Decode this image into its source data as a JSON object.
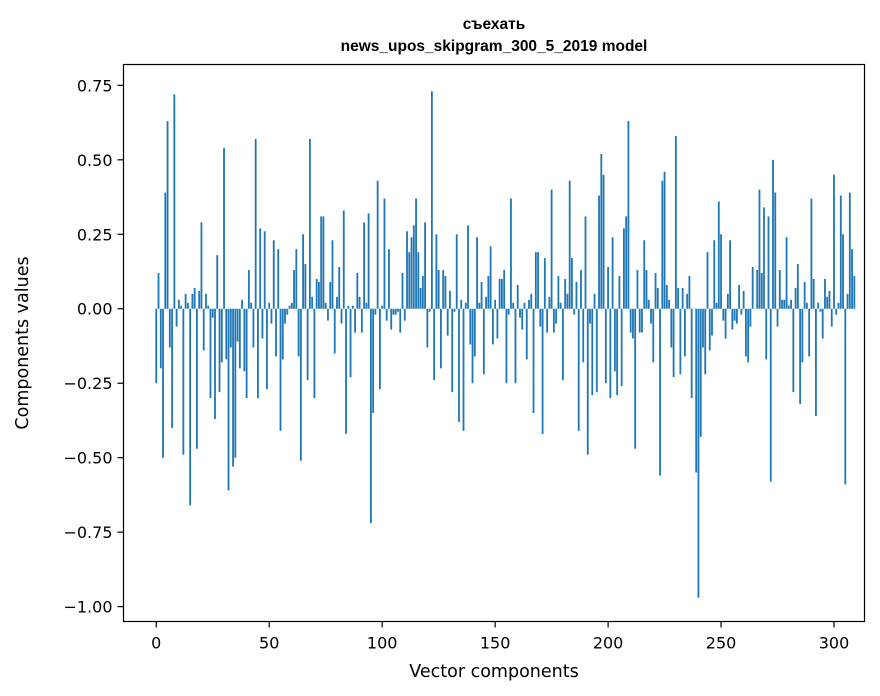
{
  "chart_data": {
    "type": "bar",
    "title": "съехать",
    "subtitle": "news_upos_skipgram_300_5_2019 model",
    "xlabel": "Vector components",
    "ylabel": "Components values",
    "xlim": [
      -14.5,
      313.5
    ],
    "ylim": [
      -1.05,
      0.82
    ],
    "xticks": [
      0,
      50,
      100,
      150,
      200,
      250,
      300
    ],
    "xtick_labels": [
      "0",
      "50",
      "100",
      "150",
      "200",
      "250",
      "300"
    ],
    "yticks": [
      0.75,
      0.5,
      0.25,
      0.0,
      -0.25,
      -0.5,
      -0.75,
      -1.0
    ],
    "ytick_labels": [
      "0.75",
      "0.50",
      "0.25",
      "0.00",
      "−0.25",
      "−0.50",
      "−0.75",
      "−1.00"
    ],
    "series_color": "#1f77b4",
    "values": [
      -0.25,
      0.12,
      -0.2,
      -0.5,
      0.39,
      0.63,
      -0.13,
      -0.4,
      0.72,
      -0.06,
      0.03,
      0.01,
      -0.49,
      0.05,
      0.02,
      -0.66,
      0.05,
      0.07,
      -0.47,
      0.06,
      0.29,
      -0.14,
      0.05,
      0.01,
      -0.3,
      -0.03,
      -0.37,
      0.18,
      -0.28,
      -0.18,
      0.54,
      -0.17,
      -0.61,
      -0.13,
      -0.53,
      -0.5,
      -0.11,
      -0.2,
      0.03,
      -0.21,
      -0.3,
      0.13,
      0.02,
      -0.13,
      0.57,
      -0.3,
      0.27,
      -0.1,
      0.26,
      -0.27,
      0.02,
      -0.05,
      0.23,
      -0.16,
      0.2,
      -0.41,
      -0.17,
      -0.05,
      -0.02,
      0.01,
      0.02,
      0.13,
      0.2,
      -0.16,
      -0.51,
      0.25,
      0.15,
      -0.24,
      0.57,
      0.04,
      -0.3,
      0.1,
      0.09,
      0.31,
      0.31,
      0.02,
      -0.04,
      0.09,
      0.23,
      -0.15,
      0.04,
      0.14,
      -0.05,
      0.33,
      -0.42,
      0.01,
      -0.23,
      0.01,
      -0.08,
      0.12,
      0.04,
      -0.08,
      0.29,
      0.02,
      0.32,
      -0.72,
      -0.35,
      -0.02,
      0.43,
      -0.27,
      0.01,
      0.37,
      -0.04,
      0.2,
      -0.07,
      -0.02,
      -0.02,
      -0.01,
      -0.08,
      0.12,
      -0.04,
      0.26,
      0.19,
      0.24,
      0.28,
      0.37,
      0.19,
      0.07,
      0.11,
      0.29,
      -0.13,
      -0.01,
      0.73,
      -0.24,
      0.25,
      0.13,
      -0.2,
      0.13,
      0.11,
      -0.09,
      0.06,
      -0.28,
      -0.01,
      0.25,
      -0.38,
      0.03,
      -0.41,
      0.02,
      0.28,
      -0.12,
      -0.25,
      -0.16,
      0.24,
      0.02,
      0.09,
      -0.22,
      0.04,
      0.11,
      0.21,
      -0.12,
      0.03,
      -0.1,
      0.1,
      0.1,
      0.13,
      -0.25,
      -0.02,
      0.37,
      0.02,
      -0.25,
      0.08,
      -0.03,
      -0.07,
      0.02,
      -0.17,
      0.03,
      0.05,
      -0.35,
      0.19,
      0.19,
      -0.06,
      -0.42,
      0.17,
      -0.08,
      0.04,
      0.4,
      -0.08,
      -0.05,
      0.11,
      0.02,
      -0.24,
      0.1,
      0.05,
      0.43,
      0.17,
      -0.02,
      0.09,
      -0.41,
      0.13,
      -0.18,
      0.31,
      -0.49,
      -0.05,
      -0.29,
      0.05,
      -0.28,
      0.38,
      0.52,
      0.45,
      -0.25,
      0.14,
      -0.3,
      0.24,
      -0.21,
      -0.29,
      0.11,
      -0.26,
      0.27,
      0.31,
      0.63,
      -0.08,
      -0.1,
      -0.47,
      0.13,
      -0.08,
      -0.08,
      0.23,
      0.13,
      0.03,
      -0.05,
      -0.18,
      0.12,
      0.07,
      -0.56,
      0.43,
      0.46,
      0.08,
      0.03,
      -0.13,
      -0.23,
      0.58,
      0.07,
      -0.22,
      0.07,
      -0.16,
      0.05,
      0.11,
      -0.3,
      0.0,
      -0.55,
      -0.97,
      -0.43,
      -0.13,
      -0.22,
      0.19,
      -0.14,
      -0.09,
      0.23,
      0.02,
      0.36,
      0.25,
      -0.04,
      -0.1,
      0.05,
      0.23,
      -0.07,
      -0.04,
      -0.05,
      0.08,
      -0.02,
      0.06,
      -0.16,
      -0.18,
      -0.06,
      0.14,
      0.0,
      0.13,
      0.4,
      0.12,
      0.34,
      -0.17,
      0.31,
      -0.58,
      0.5,
      0.39,
      -0.06,
      0.13,
      0.03,
      0.03,
      0.24,
      0.01,
      0.03,
      -0.28,
      0.07,
      0.15,
      -0.32,
      -0.18,
      0.09,
      0.02,
      -0.16,
      0.37,
      0.1,
      -0.36,
      0.02,
      -0.01,
      -0.1,
      0.1,
      0.04,
      0.06,
      -0.06,
      0.45,
      -0.02,
      0.02,
      0.38,
      0.25,
      -0.59,
      0.05,
      0.39,
      0.2,
      0.11
    ]
  }
}
